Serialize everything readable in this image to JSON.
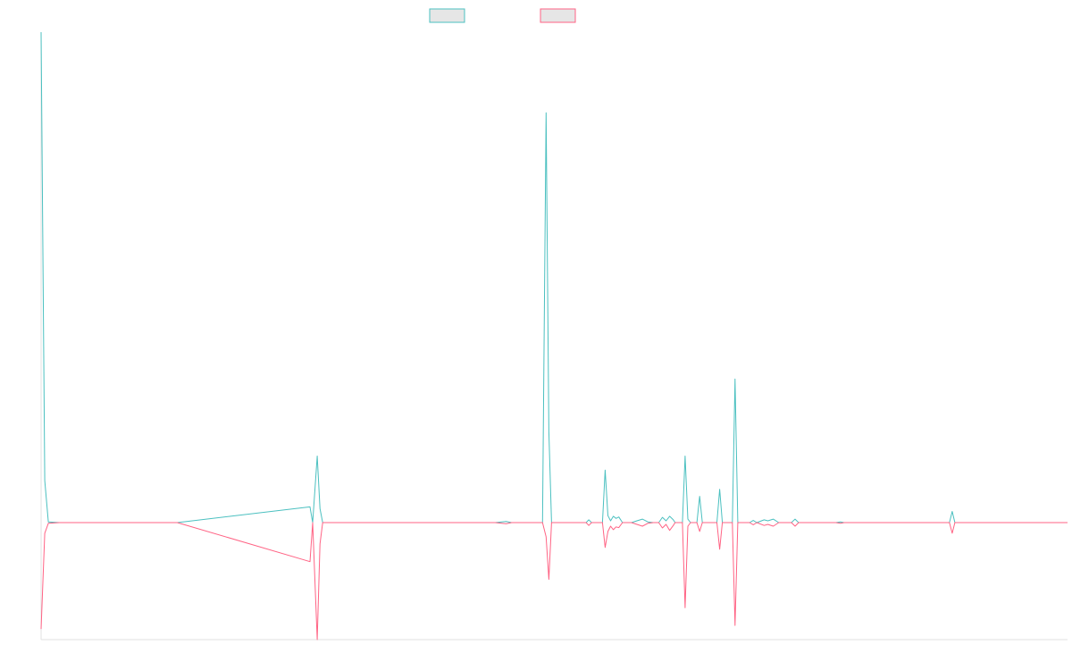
{
  "colors": {
    "series_a": "#4BC0C0",
    "series_b": "#FF6384",
    "legend_fill": "#E6E6E6",
    "axis": "#E2E2E2",
    "background": "#FFFFFF"
  },
  "chart_data": {
    "type": "line",
    "title": "",
    "xlabel": "",
    "ylabel": "",
    "grid": false,
    "legend_position": "top-center",
    "ylim": [
      -3.3,
      14
    ],
    "series": [
      {
        "values": [
          [
            0,
            14
          ],
          [
            4,
            1.2
          ],
          [
            8,
            0.02
          ],
          [
            20,
            0
          ],
          [
            150,
            0
          ],
          [
            296,
            0.45
          ],
          [
            299,
            0
          ],
          [
            304,
            1.9
          ],
          [
            307,
            0.4
          ],
          [
            310,
            0
          ],
          [
            500,
            0
          ],
          [
            512,
            0.03
          ],
          [
            518,
            0
          ],
          [
            552,
            0
          ],
          [
            556,
            11.7
          ],
          [
            559,
            2.6
          ],
          [
            562,
            0
          ],
          [
            600,
            0
          ],
          [
            603,
            0.08
          ],
          [
            606,
            0
          ],
          [
            618,
            0
          ],
          [
            621,
            1.5
          ],
          [
            624,
            0.2
          ],
          [
            627,
            0.05
          ],
          [
            630,
            0.18
          ],
          [
            633,
            0.12
          ],
          [
            636,
            0.16
          ],
          [
            640,
            0
          ],
          [
            650,
            0
          ],
          [
            656,
            0.05
          ],
          [
            662,
            0.1
          ],
          [
            668,
            0.02
          ],
          [
            674,
            0
          ],
          [
            680,
            0
          ],
          [
            684,
            0.15
          ],
          [
            688,
            0.05
          ],
          [
            692,
            0.18
          ],
          [
            696,
            0.08
          ],
          [
            698,
            0
          ],
          [
            706,
            0
          ],
          [
            709,
            1.9
          ],
          [
            712,
            0.1
          ],
          [
            715,
            0
          ],
          [
            722,
            0
          ],
          [
            725,
            0.75
          ],
          [
            728,
            0
          ],
          [
            744,
            0
          ],
          [
            747,
            0.95
          ],
          [
            750,
            0
          ],
          [
            761,
            0
          ],
          [
            764,
            4.1
          ],
          [
            767,
            0
          ],
          [
            780,
            0
          ],
          [
            784,
            0.06
          ],
          [
            788,
            0
          ],
          [
            796,
            0.08
          ],
          [
            800,
            0.05
          ],
          [
            806,
            0.1
          ],
          [
            812,
            0
          ],
          [
            826,
            0
          ],
          [
            830,
            0.1
          ],
          [
            834,
            0
          ],
          [
            875,
            0
          ],
          [
            880,
            0.02
          ],
          [
            884,
            0
          ],
          [
            1000,
            0
          ],
          [
            1003,
            0.32
          ],
          [
            1006,
            0
          ],
          [
            1130,
            0
          ]
        ]
      },
      {
        "values": [
          [
            0,
            -3
          ],
          [
            4,
            -0.3
          ],
          [
            8,
            -0.02
          ],
          [
            20,
            0
          ],
          [
            150,
            0
          ],
          [
            296,
            -1.1
          ],
          [
            299,
            0
          ],
          [
            304,
            -3.3
          ],
          [
            307,
            -0.6
          ],
          [
            310,
            0
          ],
          [
            500,
            0
          ],
          [
            512,
            -0.03
          ],
          [
            518,
            0
          ],
          [
            552,
            0
          ],
          [
            556,
            -0.4
          ],
          [
            559,
            -1.6
          ],
          [
            562,
            0
          ],
          [
            600,
            0
          ],
          [
            603,
            -0.08
          ],
          [
            606,
            0
          ],
          [
            618,
            0
          ],
          [
            621,
            -0.7
          ],
          [
            624,
            -0.25
          ],
          [
            627,
            -0.1
          ],
          [
            630,
            -0.2
          ],
          [
            633,
            -0.12
          ],
          [
            636,
            -0.14
          ],
          [
            640,
            0
          ],
          [
            650,
            0
          ],
          [
            656,
            -0.05
          ],
          [
            662,
            -0.1
          ],
          [
            668,
            -0.02
          ],
          [
            674,
            0
          ],
          [
            680,
            0
          ],
          [
            684,
            -0.15
          ],
          [
            688,
            -0.05
          ],
          [
            692,
            -0.22
          ],
          [
            696,
            -0.08
          ],
          [
            698,
            0
          ],
          [
            706,
            0
          ],
          [
            709,
            -2.4
          ],
          [
            712,
            -0.1
          ],
          [
            715,
            0
          ],
          [
            722,
            0
          ],
          [
            725,
            -0.25
          ],
          [
            728,
            0
          ],
          [
            744,
            0
          ],
          [
            747,
            -0.75
          ],
          [
            750,
            0
          ],
          [
            761,
            0
          ],
          [
            764,
            -2.9
          ],
          [
            767,
            0
          ],
          [
            780,
            0
          ],
          [
            784,
            -0.06
          ],
          [
            788,
            0
          ],
          [
            796,
            -0.08
          ],
          [
            800,
            -0.05
          ],
          [
            806,
            -0.1
          ],
          [
            812,
            0
          ],
          [
            826,
            0
          ],
          [
            830,
            -0.1
          ],
          [
            834,
            0
          ],
          [
            875,
            0
          ],
          [
            880,
            -0.02
          ],
          [
            884,
            0
          ],
          [
            1000,
            0
          ],
          [
            1003,
            -0.3
          ],
          [
            1006,
            0
          ],
          [
            1130,
            0
          ]
        ]
      }
    ]
  }
}
